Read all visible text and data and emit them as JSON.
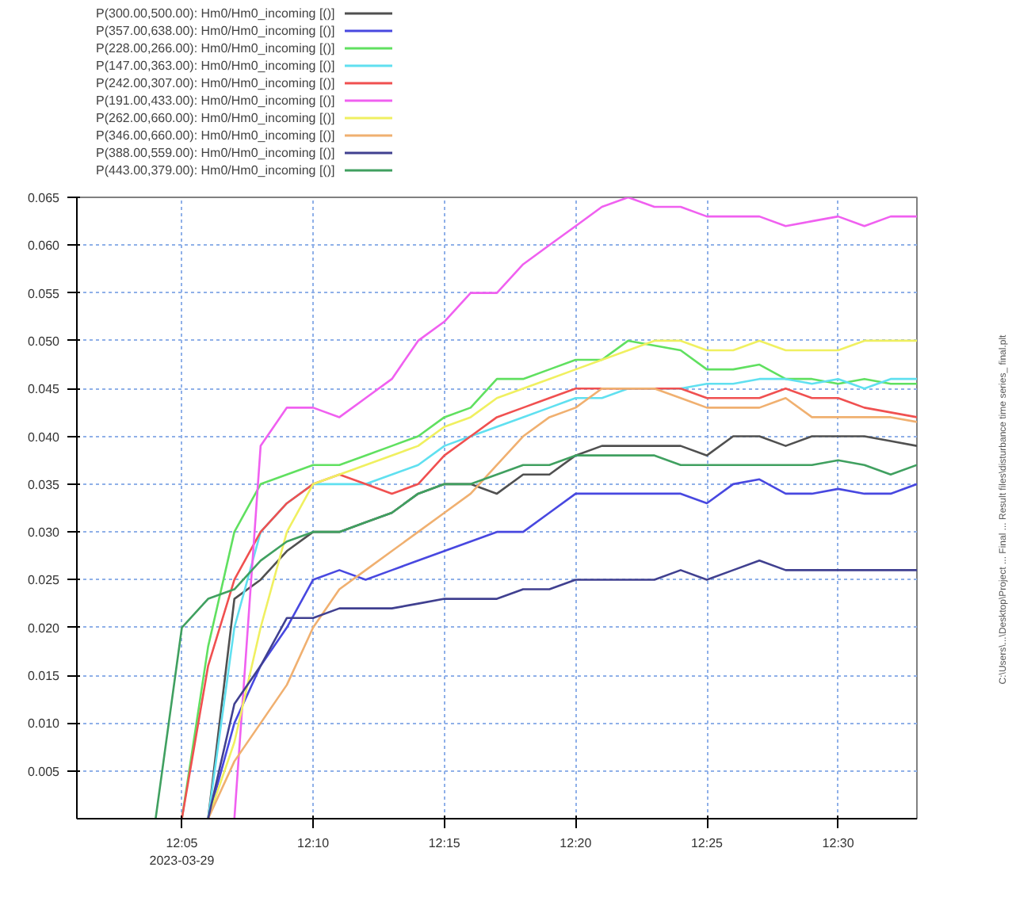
{
  "chart_data": {
    "type": "line",
    "x": [
      "2023-03-29T12:04",
      "2023-03-29T12:05",
      "2023-03-29T12:06",
      "2023-03-29T12:07",
      "2023-03-29T12:08",
      "2023-03-29T12:09",
      "2023-03-29T12:10",
      "2023-03-29T12:11",
      "2023-03-29T12:12",
      "2023-03-29T12:13",
      "2023-03-29T12:14",
      "2023-03-29T12:15",
      "2023-03-29T12:16",
      "2023-03-29T12:17",
      "2023-03-29T12:18",
      "2023-03-29T12:19",
      "2023-03-29T12:20",
      "2023-03-29T12:21",
      "2023-03-29T12:22",
      "2023-03-29T12:23",
      "2023-03-29T12:24",
      "2023-03-29T12:25",
      "2023-03-29T12:26",
      "2023-03-29T12:27",
      "2023-03-29T12:28",
      "2023-03-29T12:29",
      "2023-03-29T12:30",
      "2023-03-29T12:31",
      "2023-03-29T12:32",
      "2023-03-29T12:33"
    ],
    "series": [
      {
        "name": "P(300.00,500.00): Hm0/Hm0_incoming [()]",
        "color": "#505050",
        "values": [
          null,
          null,
          0,
          0.023,
          0.025,
          0.028,
          0.03,
          0.03,
          0.031,
          0.032,
          0.034,
          0.035,
          0.035,
          0.034,
          0.036,
          0.036,
          0.038,
          0.039,
          0.039,
          0.039,
          0.039,
          0.038,
          0.04,
          0.04,
          0.039,
          0.04,
          0.04,
          0.04,
          0.0395,
          0.039
        ]
      },
      {
        "name": "P(357.00,638.00): Hm0/Hm0_incoming [()]",
        "color": "#4848e0",
        "values": [
          null,
          null,
          0,
          0.01,
          0.016,
          0.02,
          0.025,
          0.026,
          0.025,
          0.026,
          0.027,
          0.028,
          0.029,
          0.03,
          0.03,
          0.032,
          0.034,
          0.034,
          0.034,
          0.034,
          0.034,
          0.033,
          0.035,
          0.0355,
          0.034,
          0.034,
          0.0345,
          0.034,
          0.034,
          0.035
        ]
      },
      {
        "name": "P(228.00,266.00): Hm0/Hm0_incoming [()]",
        "color": "#60e060",
        "values": [
          null,
          0,
          0.018,
          0.03,
          0.035,
          0.036,
          0.037,
          0.037,
          0.038,
          0.039,
          0.04,
          0.042,
          0.043,
          0.046,
          0.046,
          0.047,
          0.048,
          0.048,
          0.05,
          0.0495,
          0.049,
          0.047,
          0.047,
          0.0475,
          0.046,
          0.046,
          0.0455,
          0.046,
          0.0455,
          0.0455
        ]
      },
      {
        "name": "P(147.00,363.00): Hm0/Hm0_incoming [()]",
        "color": "#60e0f0",
        "values": [
          null,
          null,
          0,
          0.02,
          0.03,
          0.033,
          0.035,
          0.035,
          0.035,
          0.036,
          0.037,
          0.039,
          0.04,
          0.041,
          0.042,
          0.043,
          0.044,
          0.044,
          0.045,
          0.045,
          0.045,
          0.0455,
          0.0455,
          0.046,
          0.046,
          0.0455,
          0.046,
          0.045,
          0.046,
          0.046
        ]
      },
      {
        "name": "P(242.00,307.00): Hm0/Hm0_incoming [()]",
        "color": "#f05050",
        "values": [
          null,
          0,
          0.016,
          0.025,
          0.03,
          0.033,
          0.035,
          0.036,
          0.035,
          0.034,
          0.035,
          0.038,
          0.04,
          0.042,
          0.043,
          0.044,
          0.045,
          0.045,
          0.045,
          0.045,
          0.045,
          0.044,
          0.044,
          0.044,
          0.045,
          0.044,
          0.044,
          0.043,
          0.0425,
          0.042
        ]
      },
      {
        "name": "P(191.00,433.00): Hm0/Hm0_incoming [()]",
        "color": "#f060f0",
        "values": [
          null,
          null,
          null,
          0,
          0.039,
          0.043,
          0.043,
          0.042,
          0.044,
          0.046,
          0.05,
          0.052,
          0.055,
          0.055,
          0.058,
          0.06,
          0.062,
          0.064,
          0.065,
          0.064,
          0.064,
          0.063,
          0.063,
          0.063,
          0.062,
          0.0625,
          0.063,
          0.062,
          0.063,
          0.063
        ]
      },
      {
        "name": "P(262.00,660.00): Hm0/Hm0_incoming [()]",
        "color": "#f0f060",
        "values": [
          null,
          null,
          0,
          0.008,
          0.02,
          0.03,
          0.035,
          0.036,
          0.037,
          0.038,
          0.039,
          0.041,
          0.042,
          0.044,
          0.045,
          0.046,
          0.047,
          0.048,
          0.049,
          0.05,
          0.05,
          0.049,
          0.049,
          0.05,
          0.049,
          0.049,
          0.049,
          0.05,
          0.05,
          0.05
        ]
      },
      {
        "name": "P(346.00,660.00): Hm0/Hm0_incoming [()]",
        "color": "#f0b070",
        "values": [
          null,
          null,
          0,
          0.006,
          0.01,
          0.014,
          0.02,
          0.024,
          0.026,
          0.028,
          0.03,
          0.032,
          0.034,
          0.037,
          0.04,
          0.042,
          0.043,
          0.045,
          0.045,
          0.045,
          0.044,
          0.043,
          0.043,
          0.043,
          0.044,
          0.042,
          0.042,
          0.042,
          0.042,
          0.0415
        ]
      },
      {
        "name": "P(388.00,559.00): Hm0/Hm0_incoming [()]",
        "color": "#404090",
        "values": [
          null,
          null,
          0,
          0.012,
          0.016,
          0.021,
          0.021,
          0.022,
          0.022,
          0.022,
          0.0225,
          0.023,
          0.023,
          0.023,
          0.024,
          0.024,
          0.025,
          0.025,
          0.025,
          0.025,
          0.026,
          0.025,
          0.026,
          0.027,
          0.026,
          0.026,
          0.026,
          0.026,
          0.026,
          0.026
        ]
      },
      {
        "name": "P(443.00,379.00): Hm0/Hm0_incoming [()]",
        "color": "#40a060",
        "values": [
          0,
          0.02,
          0.023,
          0.024,
          0.027,
          0.029,
          0.03,
          0.03,
          0.031,
          0.032,
          0.034,
          0.035,
          0.035,
          0.036,
          0.037,
          0.037,
          0.038,
          0.038,
          0.038,
          0.038,
          0.037,
          0.037,
          0.037,
          0.037,
          0.037,
          0.037,
          0.0375,
          0.037,
          0.036,
          0.037
        ]
      }
    ],
    "xlim": [
      "2023-03-29T12:01",
      "2023-03-29T12:33"
    ],
    "xticks": [
      {
        "value": "2023-03-29T12:05",
        "label": "12:05\n2023-03-29"
      },
      {
        "value": "2023-03-29T12:10",
        "label": "12:10"
      },
      {
        "value": "2023-03-29T12:15",
        "label": "12:15"
      },
      {
        "value": "2023-03-29T12:20",
        "label": "12:20"
      },
      {
        "value": "2023-03-29T12:25",
        "label": "12:25"
      },
      {
        "value": "2023-03-29T12:30",
        "label": "12:30"
      }
    ],
    "ylim": [
      0,
      0.065
    ],
    "yticks": [
      {
        "value": 0.005,
        "label": "0.005"
      },
      {
        "value": 0.01,
        "label": "0.010"
      },
      {
        "value": 0.015,
        "label": "0.015"
      },
      {
        "value": 0.02,
        "label": "0.020"
      },
      {
        "value": 0.025,
        "label": "0.025"
      },
      {
        "value": 0.03,
        "label": "0.030"
      },
      {
        "value": 0.035,
        "label": "0.035"
      },
      {
        "value": 0.04,
        "label": "0.040"
      },
      {
        "value": 0.045,
        "label": "0.045"
      },
      {
        "value": 0.05,
        "label": "0.050"
      },
      {
        "value": 0.055,
        "label": "0.055"
      },
      {
        "value": 0.06,
        "label": "0.060"
      },
      {
        "value": 0.065,
        "label": "0.065"
      }
    ],
    "grid": true,
    "legend": "top left",
    "line_style": "solid",
    "annotations": [
      "C:\\Users\\...\\Desktop\\Project ... Final ... Result files\\disturbance time series_ final.plt"
    ]
  }
}
